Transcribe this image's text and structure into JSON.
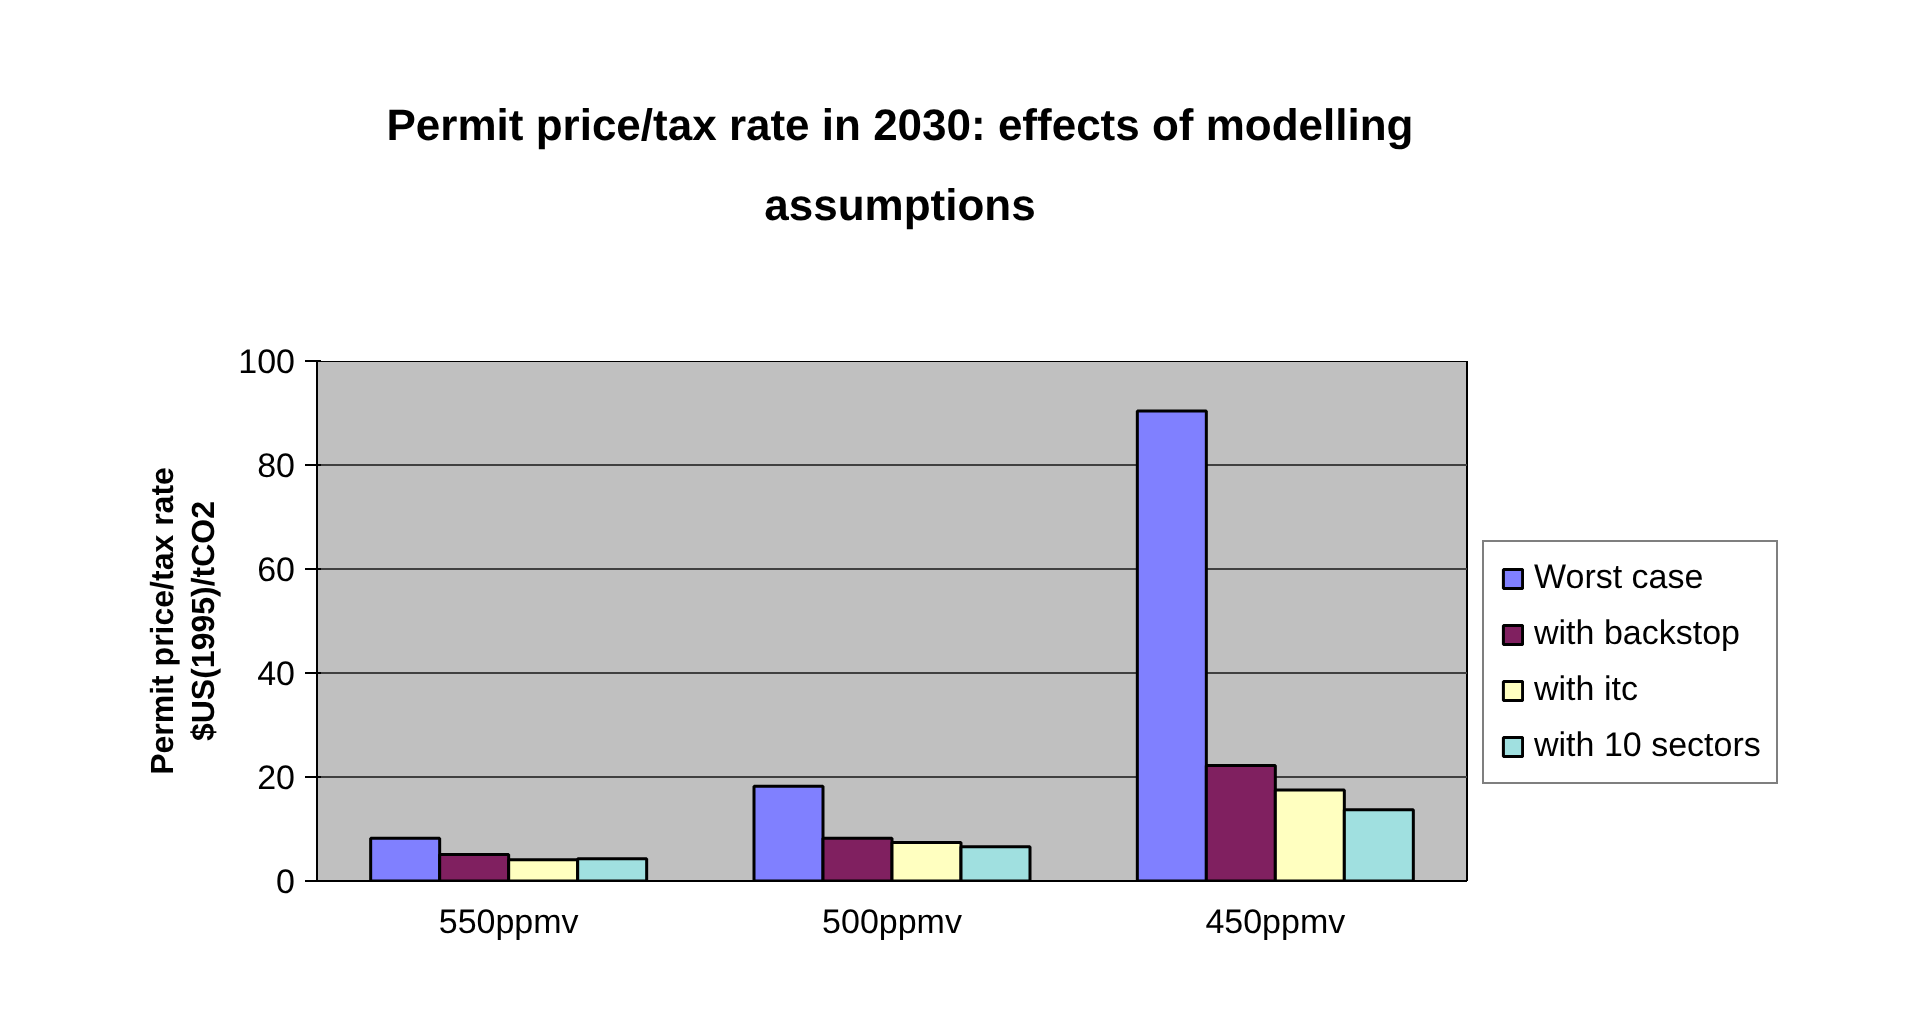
{
  "chart_data": {
    "type": "bar",
    "title": "Permit price/tax rate in 2030: effects of modelling\nassumptions",
    "ylabel": "Permit price/tax rate\n$US(1995)/tCO2",
    "categories": [
      "550ppmv",
      "500ppmv",
      "450ppmv"
    ],
    "series": [
      {
        "name": "Worst case",
        "color": "#8080ff",
        "values": [
          8.2,
          18.2,
          90.4
        ]
      },
      {
        "name": "with backstop",
        "color": "#802060",
        "values": [
          5.1,
          8.2,
          22.2
        ]
      },
      {
        "name": "with itc",
        "color": "#ffffc0",
        "values": [
          4.1,
          7.4,
          17.5
        ]
      },
      {
        "name": "with 10 sectors",
        "color": "#a0e0e0",
        "values": [
          4.3,
          6.6,
          13.7
        ]
      }
    ],
    "ylim": [
      0,
      100
    ],
    "yticks": [
      0,
      20,
      40,
      60,
      80,
      100
    ],
    "grid": "y",
    "legend": "right"
  }
}
